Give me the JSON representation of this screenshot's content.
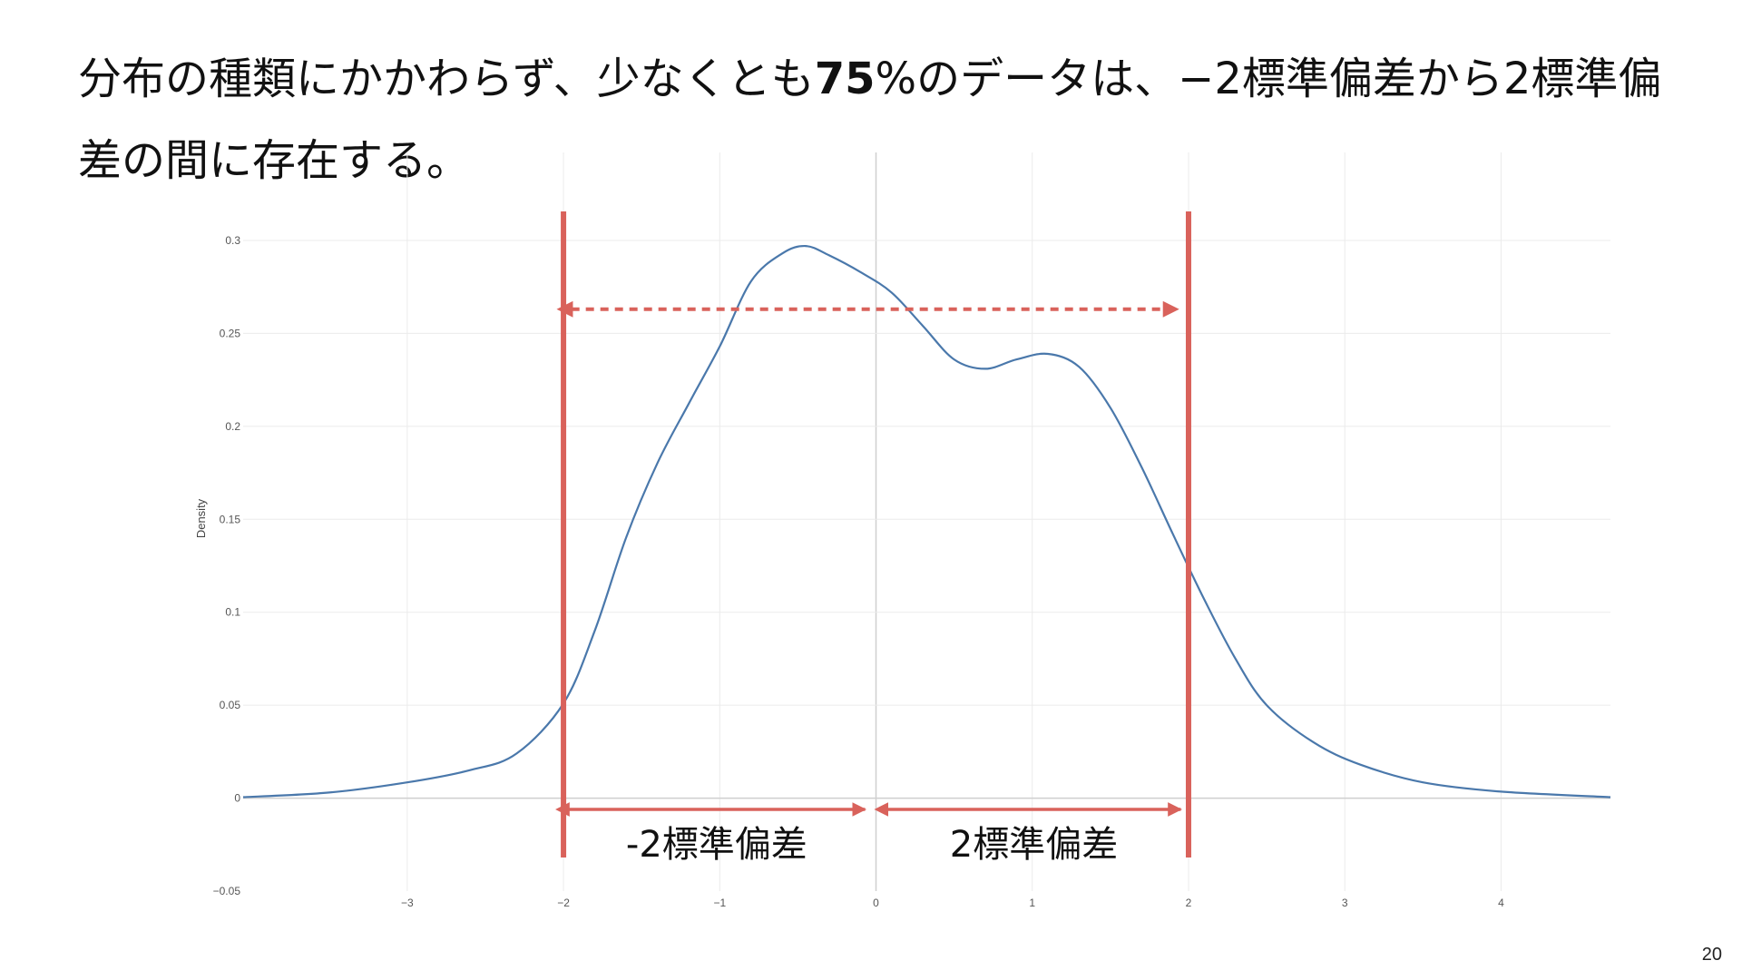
{
  "slide": {
    "title_before": "分布の種類にかかわらず、少なくとも",
    "title_bold": "75",
    "title_after": "%のデータは、−2標準偏差から2標準偏差の間に存在する。",
    "page_number": "20"
  },
  "colors": {
    "curve": "#4a78ab",
    "accent": "#d9625b",
    "grid": "#ebebeb",
    "zero_line": "#cfcfcf"
  },
  "chart_data": {
    "type": "area",
    "ylabel": "Density",
    "xlabel": "",
    "xlim": [
      -4.05,
      4.7
    ],
    "ylim": [
      -0.05,
      0.3
    ],
    "x_ticks": [
      {
        "value": -3,
        "label": "−3"
      },
      {
        "value": -2,
        "label": "−2"
      },
      {
        "value": -1,
        "label": "−1"
      },
      {
        "value": 0,
        "label": "0"
      },
      {
        "value": 1,
        "label": "1"
      },
      {
        "value": 2,
        "label": "2"
      },
      {
        "value": 3,
        "label": "3"
      },
      {
        "value": 4,
        "label": "4"
      }
    ],
    "y_ticks": [
      {
        "value": -0.05,
        "label": "−0.05"
      },
      {
        "value": 0,
        "label": "0"
      },
      {
        "value": 0.05,
        "label": "0.05"
      },
      {
        "value": 0.1,
        "label": "0.1"
      },
      {
        "value": 0.15,
        "label": "0.15"
      },
      {
        "value": 0.2,
        "label": "0.2"
      },
      {
        "value": 0.25,
        "label": "0.25"
      },
      {
        "value": 0.3,
        "label": "0.3"
      }
    ],
    "grid": true,
    "series": [
      {
        "x": [
          -4.05,
          -3.5,
          -3.0,
          -2.6,
          -2.3,
          -2.0,
          -1.8,
          -1.6,
          -1.4,
          -1.2,
          -1.0,
          -0.8,
          -0.6,
          -0.45,
          -0.3,
          -0.1,
          0.1,
          0.3,
          0.5,
          0.7,
          0.9,
          1.1,
          1.3,
          1.5,
          1.7,
          1.9,
          2.1,
          2.3,
          2.5,
          2.8,
          3.1,
          3.5,
          4.0,
          4.7
        ],
        "y": [
          0.0005,
          0.003,
          0.0085,
          0.015,
          0.024,
          0.051,
          0.09,
          0.14,
          0.18,
          0.212,
          0.243,
          0.278,
          0.293,
          0.297,
          0.292,
          0.283,
          0.272,
          0.254,
          0.236,
          0.231,
          0.236,
          0.239,
          0.232,
          0.21,
          0.178,
          0.142,
          0.107,
          0.075,
          0.05,
          0.03,
          0.018,
          0.0085,
          0.0035,
          0.0005
        ]
      }
    ],
    "vertical_lines": [
      -2,
      2
    ],
    "range_arrow_y": 0.263,
    "range_arrow_x": [
      -1.95,
      1.93
    ],
    "bracket_arrows": [
      {
        "x": [
          -1.97,
          -0.07
        ],
        "label": "-2標準偏差"
      },
      {
        "x": [
          0.07,
          1.95
        ],
        "label": "2標準偏差"
      }
    ]
  }
}
